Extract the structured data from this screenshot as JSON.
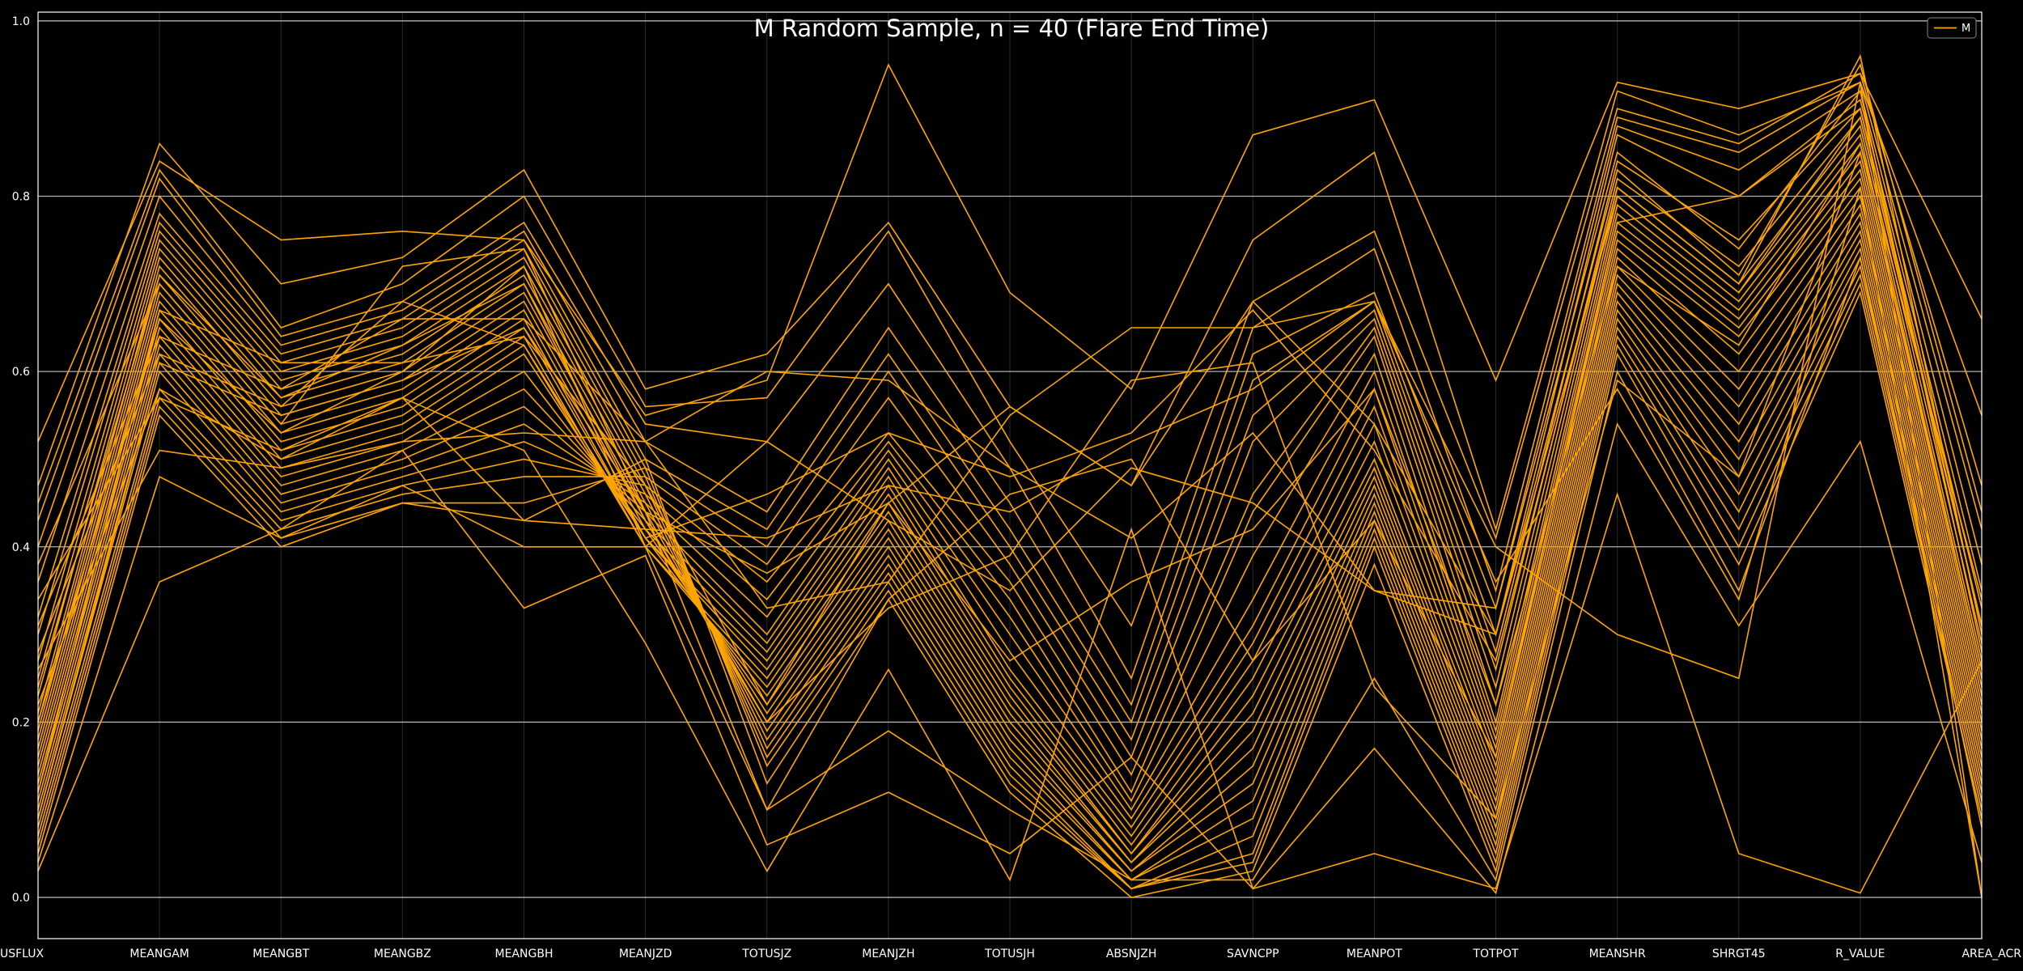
{
  "chart_data": {
    "type": "line",
    "title": "M Random Sample, n = 40 (Flare End Time)",
    "xlabel": "",
    "ylabel": "",
    "categories": [
      "USFLUX",
      "MEANGAM",
      "MEANGBT",
      "MEANGBZ",
      "MEANGBH",
      "MEANJZD",
      "TOTUSJZ",
      "MEANJZH",
      "TOTUSJH",
      "ABSNJZH",
      "SAVNCPP",
      "MEANPOT",
      "TOTPOT",
      "MEANSHR",
      "SHRGT45",
      "R_VALUE",
      "AREA_ACR"
    ],
    "ylim": [
      -0.047,
      1.01
    ],
    "yticks": [
      0.0,
      0.2,
      0.4,
      0.6,
      0.8,
      1.0
    ],
    "ytick_labels": [
      "0.0",
      "0.2",
      "0.4",
      "0.6",
      "0.8",
      "1.0"
    ],
    "grid": "horizontal",
    "legend": {
      "position": "top-right",
      "entries": [
        "M"
      ]
    },
    "colors": {
      "background": "#000000",
      "line": "#FFA500",
      "grid": "#B0B0B0",
      "text": "#FFFFFF"
    },
    "series": [
      {
        "values": [
          0.52,
          0.84,
          0.75,
          0.76,
          0.75,
          0.55,
          0.59,
          0.95,
          0.69,
          0.58,
          0.87,
          0.91,
          0.59,
          0.93,
          0.9,
          0.94,
          0.66
        ]
      },
      {
        "values": [
          0.47,
          0.86,
          0.7,
          0.73,
          0.83,
          0.58,
          0.62,
          0.77,
          0.56,
          0.47,
          0.75,
          0.85,
          0.42,
          0.92,
          0.87,
          0.93,
          0.55
        ]
      },
      {
        "values": [
          0.45,
          0.83,
          0.65,
          0.7,
          0.8,
          0.56,
          0.57,
          0.76,
          0.52,
          0.31,
          0.68,
          0.76,
          0.41,
          0.9,
          0.86,
          0.94,
          0.47
        ]
      },
      {
        "values": [
          0.43,
          0.82,
          0.64,
          0.68,
          0.77,
          0.54,
          0.52,
          0.7,
          0.49,
          0.25,
          0.65,
          0.74,
          0.35,
          0.89,
          0.85,
          0.93,
          0.42
        ]
      },
      {
        "values": [
          0.4,
          0.8,
          0.63,
          0.67,
          0.76,
          0.52,
          0.44,
          0.65,
          0.45,
          0.22,
          0.62,
          0.69,
          0.33,
          0.88,
          0.83,
          0.92,
          0.38
        ]
      },
      {
        "values": [
          0.36,
          0.78,
          0.62,
          0.66,
          0.75,
          0.5,
          0.42,
          0.62,
          0.42,
          0.2,
          0.59,
          0.68,
          0.3,
          0.87,
          0.8,
          0.91,
          0.35
        ]
      },
      {
        "values": [
          0.32,
          0.77,
          0.61,
          0.65,
          0.74,
          0.49,
          0.4,
          0.6,
          0.4,
          0.18,
          0.55,
          0.67,
          0.28,
          0.84,
          0.75,
          0.9,
          0.33
        ]
      },
      {
        "values": [
          0.3,
          0.76,
          0.6,
          0.64,
          0.73,
          0.48,
          0.38,
          0.57,
          0.38,
          0.16,
          0.52,
          0.66,
          0.26,
          0.82,
          0.72,
          0.89,
          0.31
        ]
      },
      {
        "values": [
          0.27,
          0.75,
          0.59,
          0.63,
          0.72,
          0.47,
          0.36,
          0.53,
          0.36,
          0.14,
          0.46,
          0.65,
          0.24,
          0.81,
          0.7,
          0.88,
          0.29
        ]
      },
      {
        "values": [
          0.25,
          0.74,
          0.58,
          0.62,
          0.71,
          0.46,
          0.34,
          0.52,
          0.34,
          0.12,
          0.44,
          0.64,
          0.22,
          0.8,
          0.69,
          0.87,
          0.27
        ]
      },
      {
        "values": [
          0.23,
          0.73,
          0.57,
          0.61,
          0.7,
          0.45,
          0.32,
          0.51,
          0.32,
          0.11,
          0.39,
          0.62,
          0.2,
          0.79,
          0.68,
          0.86,
          0.26
        ]
      },
      {
        "values": [
          0.21,
          0.72,
          0.56,
          0.6,
          0.69,
          0.44,
          0.3,
          0.5,
          0.3,
          0.1,
          0.34,
          0.6,
          0.19,
          0.78,
          0.67,
          0.85,
          0.25
        ]
      },
      {
        "values": [
          0.2,
          0.71,
          0.55,
          0.59,
          0.68,
          0.43,
          0.29,
          0.49,
          0.28,
          0.09,
          0.31,
          0.58,
          0.18,
          0.77,
          0.66,
          0.84,
          0.24
        ]
      },
      {
        "values": [
          0.19,
          0.7,
          0.54,
          0.58,
          0.67,
          0.42,
          0.28,
          0.48,
          0.26,
          0.08,
          0.29,
          0.56,
          0.17,
          0.76,
          0.65,
          0.83,
          0.23
        ]
      },
      {
        "values": [
          0.18,
          0.69,
          0.53,
          0.57,
          0.66,
          0.41,
          0.27,
          0.47,
          0.25,
          0.07,
          0.27,
          0.54,
          0.16,
          0.75,
          0.64,
          0.82,
          0.22
        ]
      },
      {
        "values": [
          0.17,
          0.68,
          0.52,
          0.56,
          0.65,
          0.41,
          0.26,
          0.46,
          0.24,
          0.06,
          0.25,
          0.52,
          0.15,
          0.74,
          0.62,
          0.81,
          0.21
        ]
      },
      {
        "values": [
          0.16,
          0.67,
          0.51,
          0.55,
          0.64,
          0.4,
          0.25,
          0.45,
          0.23,
          0.05,
          0.23,
          0.5,
          0.14,
          0.73,
          0.6,
          0.8,
          0.2
        ]
      },
      {
        "values": [
          0.15,
          0.66,
          0.5,
          0.54,
          0.63,
          0.4,
          0.24,
          0.44,
          0.22,
          0.05,
          0.21,
          0.49,
          0.13,
          0.72,
          0.58,
          0.79,
          0.19
        ]
      },
      {
        "values": [
          0.14,
          0.65,
          0.49,
          0.53,
          0.62,
          0.41,
          0.23,
          0.43,
          0.21,
          0.04,
          0.19,
          0.48,
          0.12,
          0.71,
          0.56,
          0.78,
          0.18
        ]
      },
      {
        "values": [
          0.13,
          0.64,
          0.48,
          0.52,
          0.6,
          0.42,
          0.22,
          0.42,
          0.2,
          0.04,
          0.17,
          0.47,
          0.11,
          0.7,
          0.54,
          0.77,
          0.17
        ]
      },
      {
        "values": [
          0.12,
          0.63,
          0.47,
          0.51,
          0.58,
          0.43,
          0.21,
          0.41,
          0.19,
          0.03,
          0.15,
          0.46,
          0.1,
          0.69,
          0.52,
          0.76,
          0.16
        ]
      },
      {
        "values": [
          0.11,
          0.62,
          0.46,
          0.5,
          0.56,
          0.44,
          0.2,
          0.4,
          0.18,
          0.03,
          0.13,
          0.45,
          0.09,
          0.68,
          0.5,
          0.75,
          0.15
        ]
      },
      {
        "values": [
          0.1,
          0.61,
          0.45,
          0.49,
          0.54,
          0.45,
          0.19,
          0.39,
          0.17,
          0.02,
          0.11,
          0.44,
          0.08,
          0.67,
          0.48,
          0.74,
          0.14
        ]
      },
      {
        "values": [
          0.09,
          0.6,
          0.44,
          0.48,
          0.52,
          0.46,
          0.18,
          0.38,
          0.16,
          0.02,
          0.09,
          0.43,
          0.07,
          0.66,
          0.46,
          0.73,
          0.13
        ]
      },
      {
        "values": [
          0.08,
          0.58,
          0.43,
          0.47,
          0.5,
          0.47,
          0.17,
          0.37,
          0.15,
          0.01,
          0.07,
          0.42,
          0.06,
          0.65,
          0.44,
          0.72,
          0.12
        ]
      },
      {
        "values": [
          0.07,
          0.57,
          0.42,
          0.46,
          0.48,
          0.48,
          0.16,
          0.36,
          0.14,
          0.01,
          0.05,
          0.41,
          0.05,
          0.64,
          0.42,
          0.71,
          0.11
        ]
      },
      {
        "values": [
          0.06,
          0.56,
          0.41,
          0.45,
          0.45,
          0.49,
          0.15,
          0.35,
          0.13,
          0.01,
          0.04,
          0.4,
          0.04,
          0.63,
          0.4,
          0.7,
          0.1
        ]
      },
      {
        "values": [
          0.05,
          0.55,
          0.4,
          0.45,
          0.43,
          0.5,
          0.13,
          0.34,
          0.12,
          0.0,
          0.03,
          0.38,
          0.03,
          0.62,
          0.38,
          0.69,
          0.09
        ]
      },
      {
        "values": [
          0.04,
          0.48,
          0.41,
          0.47,
          0.4,
          0.4,
          0.1,
          0.19,
          0.1,
          0.02,
          0.02,
          0.25,
          0.02,
          0.6,
          0.35,
          0.73,
          0.08
        ]
      },
      {
        "values": [
          0.03,
          0.36,
          0.42,
          0.51,
          0.33,
          0.39,
          0.06,
          0.12,
          0.05,
          0.16,
          0.01,
          0.17,
          0.005,
          0.54,
          0.31,
          0.52,
          0.04
        ]
      },
      {
        "values": [
          0.22,
          0.58,
          0.5,
          0.57,
          0.51,
          0.29,
          0.03,
          0.26,
          0.02,
          0.42,
          0.01,
          0.05,
          0.01,
          0.46,
          0.05,
          0.005,
          0.27
        ]
      },
      {
        "values": [
          0.26,
          0.51,
          0.49,
          0.52,
          0.53,
          0.52,
          0.33,
          0.36,
          0.55,
          0.65,
          0.65,
          0.68,
          0.4,
          0.3,
          0.25,
          0.93,
          0.0
        ]
      },
      {
        "values": [
          0.34,
          0.57,
          0.51,
          0.57,
          0.43,
          0.42,
          0.41,
          0.47,
          0.44,
          0.52,
          0.58,
          0.68,
          0.36,
          0.58,
          0.34,
          0.81,
          0.0
        ]
      },
      {
        "values": [
          0.38,
          0.7,
          0.54,
          0.72,
          0.74,
          0.44,
          0.37,
          0.45,
          0.56,
          0.47,
          0.68,
          0.54,
          0.3,
          0.83,
          0.71,
          0.95,
          0.44
        ]
      },
      {
        "values": [
          0.28,
          0.62,
          0.56,
          0.68,
          0.63,
          0.41,
          0.46,
          0.53,
          0.48,
          0.53,
          0.67,
          0.51,
          0.27,
          0.81,
          0.7,
          0.96,
          0.3
        ]
      },
      {
        "values": [
          0.31,
          0.64,
          0.58,
          0.66,
          0.66,
          0.52,
          0.6,
          0.59,
          0.49,
          0.41,
          0.53,
          0.35,
          0.33,
          0.85,
          0.74,
          0.92,
          0.28
        ]
      },
      {
        "values": [
          0.2,
          0.66,
          0.53,
          0.6,
          0.72,
          0.4,
          0.52,
          0.43,
          0.35,
          0.49,
          0.45,
          0.35,
          0.3,
          0.8,
          0.69,
          0.89,
          0.31
        ]
      },
      {
        "values": [
          0.24,
          0.71,
          0.57,
          0.63,
          0.7,
          0.43,
          0.2,
          0.33,
          0.39,
          0.59,
          0.61,
          0.24,
          0.09,
          0.59,
          0.48,
          0.85,
          0.26
        ]
      },
      {
        "values": [
          0.09,
          0.61,
          0.55,
          0.59,
          0.65,
          0.44,
          0.1,
          0.34,
          0.46,
          0.5,
          0.27,
          0.43,
          0.16,
          0.77,
          0.8,
          0.9,
          0.31
        ]
      },
      {
        "values": [
          0.12,
          0.67,
          0.61,
          0.61,
          0.64,
          0.47,
          0.22,
          0.45,
          0.27,
          0.36,
          0.42,
          0.58,
          0.22,
          0.72,
          0.63,
          0.86,
          0.34
        ]
      }
    ]
  }
}
